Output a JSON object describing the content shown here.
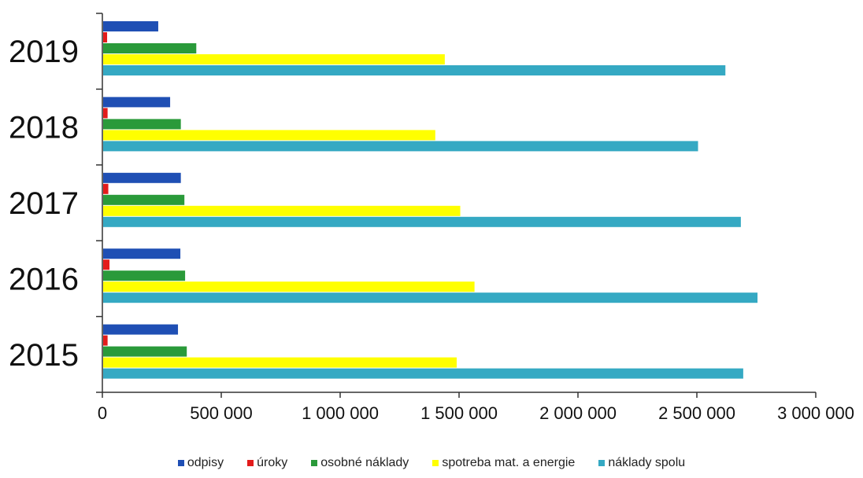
{
  "chart_data": {
    "type": "bar",
    "orientation": "horizontal",
    "categories": [
      "2019",
      "2018",
      "2017",
      "2016",
      "2015"
    ],
    "series": [
      {
        "name": "odpisy",
        "color": "#1f4fb4",
        "values": [
          235000,
          285000,
          330000,
          328000,
          318000
        ]
      },
      {
        "name": "úroky",
        "color": "#e31b1b",
        "values": [
          20000,
          22000,
          25000,
          30000,
          22000
        ]
      },
      {
        "name": "osobné náklady",
        "color": "#2a9a3a",
        "values": [
          395000,
          330000,
          345000,
          348000,
          355000
        ]
      },
      {
        "name": "spotreba mat. a energie",
        "color": "#ffff00",
        "values": [
          1440000,
          1400000,
          1505000,
          1565000,
          1490000
        ]
      },
      {
        "name": "náklady spolu",
        "color": "#35a9c3",
        "values": [
          2620000,
          2505000,
          2685000,
          2755000,
          2695000
        ]
      }
    ],
    "x_ticks": [
      "0",
      "500 000",
      "1 000 000",
      "1 500 000",
      "2 000 000",
      "2 500 000",
      "3 000 000"
    ],
    "xlim": [
      0,
      3000000
    ],
    "grid": false,
    "legend_position": "bottom",
    "title": "",
    "xlabel": "",
    "ylabel": ""
  }
}
